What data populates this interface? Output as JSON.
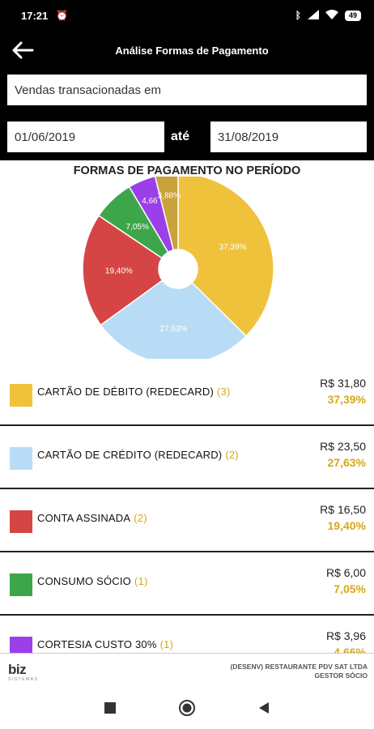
{
  "status_bar": {
    "time": "17:21",
    "battery": "49"
  },
  "header": {
    "title": "Análise Formas de Pagamento"
  },
  "filter": {
    "label_value": "Vendas transacionadas em",
    "date_from": "01/06/2019",
    "date_separator": "até",
    "date_to": "31/08/2019"
  },
  "chart_data": {
    "type": "pie",
    "donut": true,
    "title": "FORMAS DE PAGAMENTO NO PERÍODO",
    "slices": [
      {
        "label": "CARTÃO DE DÉBITO (REDECARD)",
        "value": 37.39,
        "display": "37,39%",
        "color": "#f0c23c"
      },
      {
        "label": "CARTÃO DE CRÉDITO (REDECARD)",
        "value": 27.63,
        "display": "27,63%",
        "color": "#b9dcf6"
      },
      {
        "label": "CONTA ASSINADA",
        "value": 19.4,
        "display": "19,40%",
        "color": "#d64545"
      },
      {
        "label": "CONSUMO SÓCIO",
        "value": 7.05,
        "display": "7,05%",
        "color": "#3da64a"
      },
      {
        "label": "CORTESIA CUSTO 30%",
        "value": 4.66,
        "display": "4,66",
        "color": "#9b3fe8"
      },
      {
        "label": "",
        "value": 3.88,
        "display": "3,88%",
        "color": "#c9a23c"
      }
    ]
  },
  "items": [
    {
      "name": "CARTÃO DE DÉBITO (REDECARD)",
      "count": "(3)",
      "value": "R$ 31,80",
      "percent": "37,39%",
      "color": "#f0c23c"
    },
    {
      "name": "CARTÃO DE CRÉDITO (REDECARD)",
      "count": "(2)",
      "value": "R$ 23,50",
      "percent": "27,63%",
      "color": "#b9dcf6"
    },
    {
      "name": "CONTA ASSINADA",
      "count": "(2)",
      "value": "R$ 16,50",
      "percent": "19,40%",
      "color": "#d64545"
    },
    {
      "name": "CONSUMO SÓCIO",
      "count": "(1)",
      "value": "R$ 6,00",
      "percent": "7,05%",
      "color": "#3da64a"
    },
    {
      "name": "CORTESIA CUSTO 30%",
      "count": "(1)",
      "value": "R$ 3,96",
      "percent": "4,66%",
      "color": "#9b3fe8"
    }
  ],
  "footer": {
    "logo": "biz",
    "logo_sub": "SISTEMAS",
    "company_line1": "(DESENV) RESTAURANTE PDV SAT LTDA",
    "company_line2": "GESTOR SÓCIO"
  }
}
